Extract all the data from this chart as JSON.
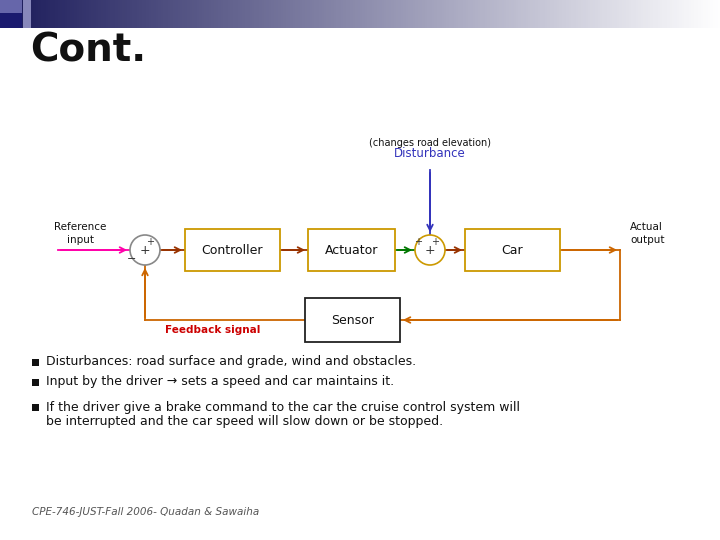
{
  "title": "Cont.",
  "title_fontsize": 28,
  "bg_color": "#ffffff",
  "bullet_points": [
    "Disturbances: road surface and grade, wind and obstacles.",
    "Input by the driver → sets a speed and car maintains it.",
    "If the driver give a brake command to the car the cruise control system will\nbe interrupted and the car speed will slow down or be stopped."
  ],
  "footer": "CPE-746-JUST-Fall 2006- Quadan & Sawaiha",
  "diagram": {
    "ref_label": [
      "Reference",
      "input"
    ],
    "controller_label": "Controller",
    "actuator_label": "Actuator",
    "car_label": "Car",
    "sensor_label": "Sensor",
    "actual_output_label": [
      "Actual",
      "output"
    ],
    "disturbance_label": "Disturbance",
    "disturbance_sublabel": "(changes road elevation)",
    "feedback_label": "Feedback signal",
    "colors": {
      "magenta_line": "#FF00AA",
      "orange_line": "#CC6600",
      "green_line": "#007700",
      "blue_arrow": "#3333BB",
      "box_border": "#CC9900",
      "sum2_border": "#CC9900",
      "sensor_border": "#222222",
      "disturbance_text": "#3333BB",
      "feedback_text": "#CC0000",
      "sum1_circle": "#888888",
      "controller_arrow": "#993300",
      "dark_red": "#993300"
    }
  }
}
